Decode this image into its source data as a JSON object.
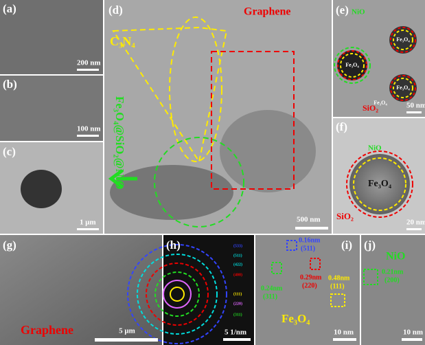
{
  "panels": [
    {
      "label": "(a)",
      "scale_bar": "200 nm"
    },
    {
      "label": "(b)",
      "scale_bar": "100 nm"
    },
    {
      "label": "(c)",
      "scale_bar": "1 μm"
    },
    {
      "label": "(d)",
      "scale_bar": "500 nm",
      "annotations": [
        "Graphene",
        "C₃N₄",
        "Fe₃O₄@SiO₂@NiO"
      ]
    },
    {
      "label": "(e)",
      "scale_bar": "50 nm",
      "annotations": [
        "NiO",
        "Fe₃O₄",
        "Fe₃O₄",
        "Fe₃O₄",
        "Fe₃O₄",
        "SiO₂"
      ]
    },
    {
      "label": "(f)",
      "scale_bar": "20 nm",
      "annotations": [
        "NiO",
        "Fe₃O₄",
        "SiO₂"
      ]
    },
    {
      "label": "(g)",
      "scale_bar": "5 μm",
      "annotations": [
        "Graphene"
      ]
    },
    {
      "label": "(h)",
      "scale_bar": "5 1/nm",
      "annotations": [
        "(533)",
        "(511)",
        "(422)",
        "(400)",
        "(111)",
        "(220)",
        "(311)"
      ]
    },
    {
      "label": "(i)",
      "scale_bar": "10 nm",
      "annotations": [
        "0.16nm",
        "(511)",
        "0.29nm",
        "(220)",
        "0.48nm",
        "(111)",
        "0.24nm",
        "(311)",
        "Fe₃O₄"
      ]
    },
    {
      "label": "(j)",
      "scale_bar": "10 nm",
      "annotations": [
        "NiO",
        "0.21nm",
        "(200)"
      ]
    }
  ]
}
